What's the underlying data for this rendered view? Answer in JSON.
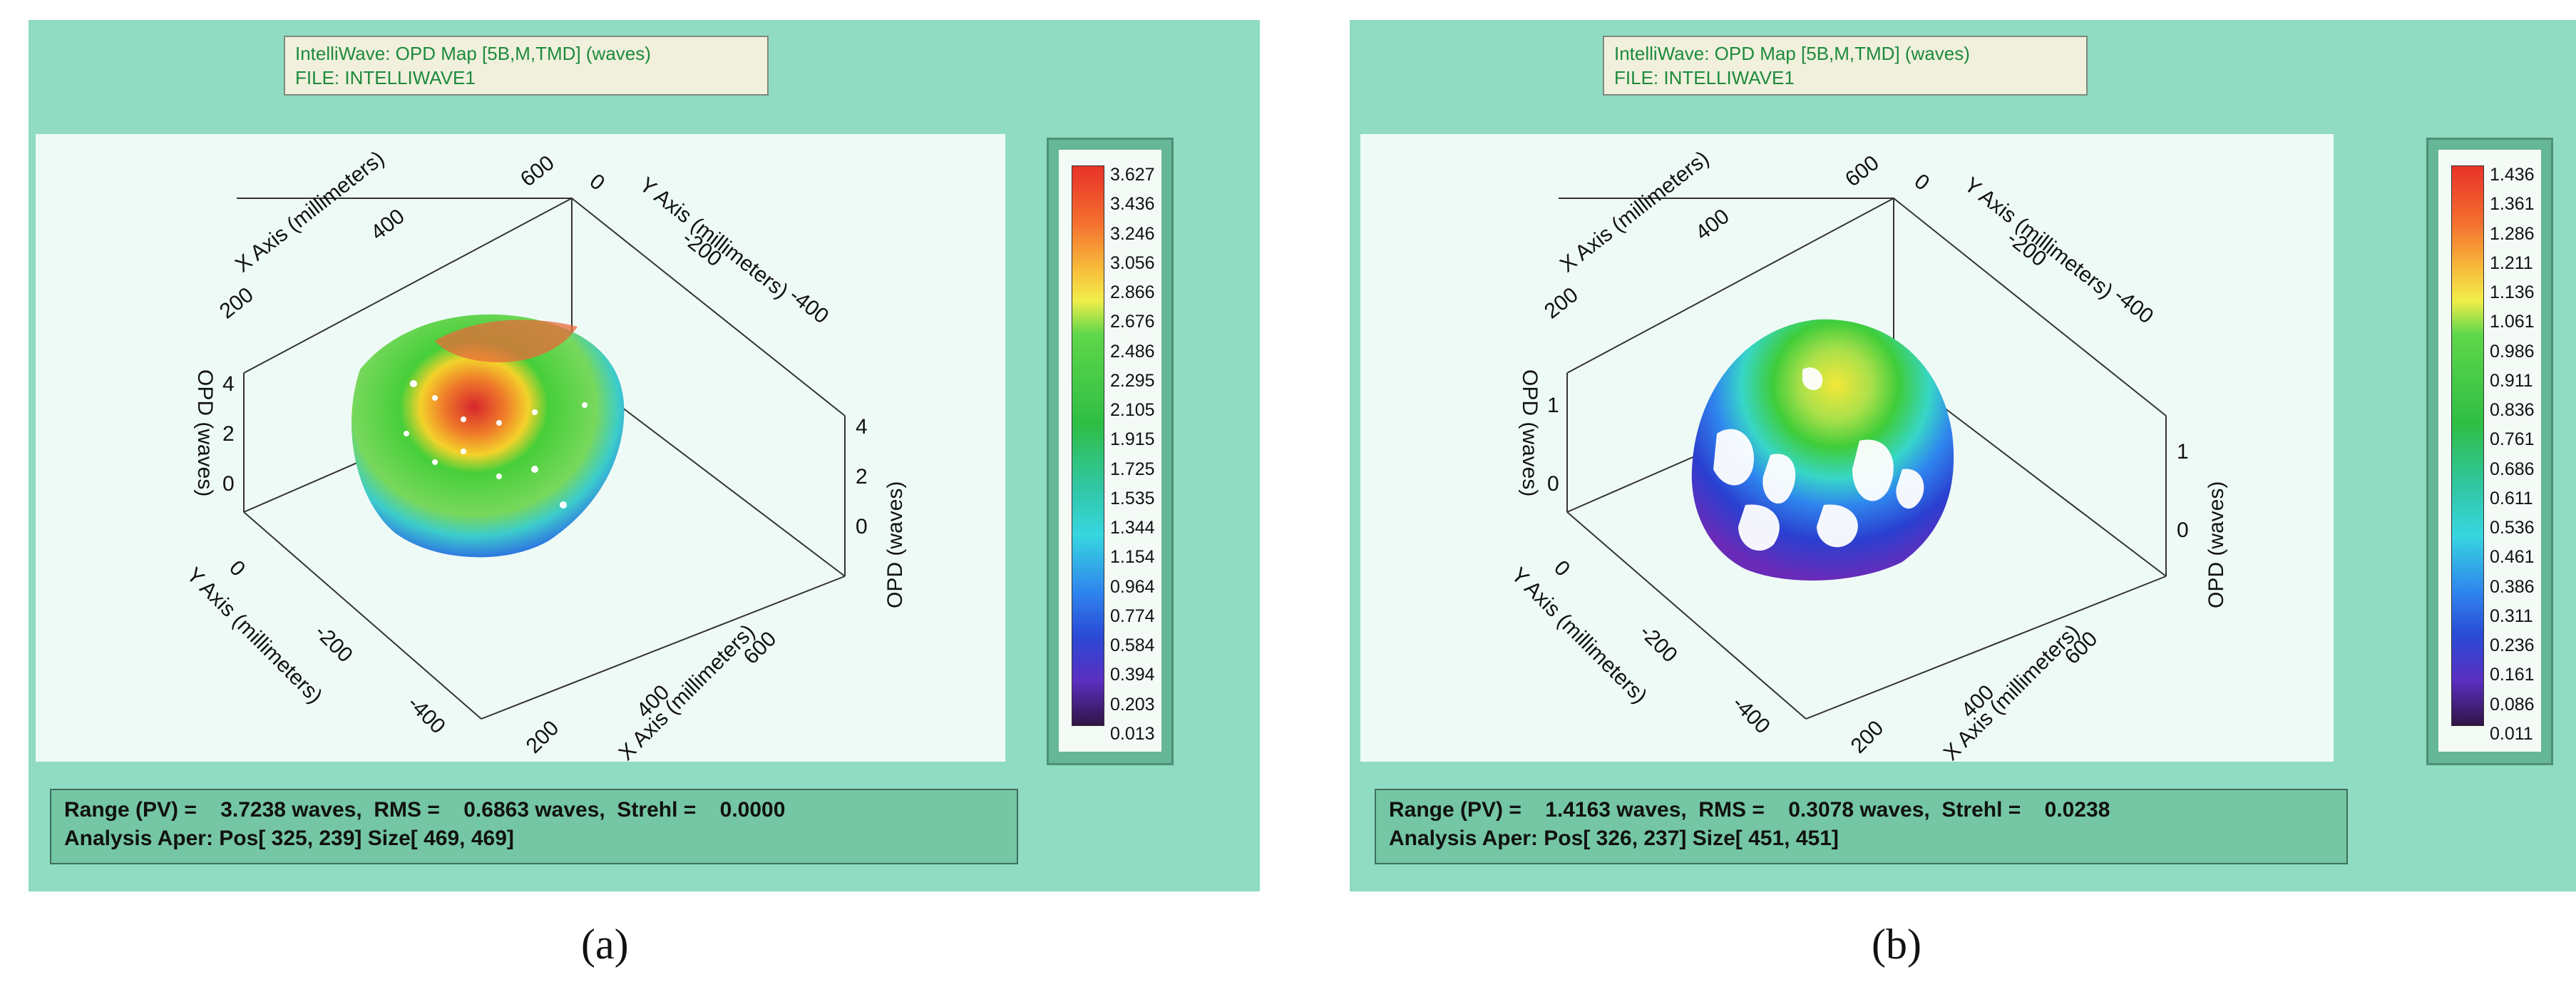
{
  "panels": [
    {
      "caption": "(a)",
      "title_line1": "IntelliWave: OPD Map [5B,M,TMD]  (waves)",
      "title_line2": "FILE: INTELLIWAVE1",
      "axes": {
        "x_axis_label": "X Axis (millimeters)",
        "y_axis_label": "Y Axis (millimeters)",
        "z_axis_label": "OPD (waves)",
        "x_ticks": [
          "200",
          "400",
          "600"
        ],
        "y_ticks": [
          "0",
          "-200",
          "-400"
        ],
        "z_ticks": [
          "0",
          "2",
          "4"
        ]
      },
      "colorbar": [
        "3.627",
        "3.436",
        "3.246",
        "3.056",
        "2.866",
        "2.676",
        "2.486",
        "2.295",
        "2.105",
        "1.915",
        "1.725",
        "1.535",
        "1.344",
        "1.154",
        "0.964",
        "0.774",
        "0.584",
        "0.394",
        "0.203",
        "0.013"
      ],
      "stats_line1": "Range (PV) =    3.7238 waves,  RMS =    0.6863 waves,  Strehl =    0.0000",
      "stats_line2": "Analysis Aper: Pos[ 325, 239] Size[ 469, 469]"
    },
    {
      "caption": "(b)",
      "title_line1": "IntelliWave: OPD Map [5B,M,TMD]  (waves)",
      "title_line2": "FILE: INTELLIWAVE1",
      "axes": {
        "x_axis_label": "X Axis (millimeters)",
        "y_axis_label": "Y Axis (millimeters)",
        "z_axis_label": "OPD (waves)",
        "x_ticks": [
          "200",
          "400",
          "600"
        ],
        "y_ticks": [
          "0",
          "-200",
          "-400"
        ],
        "z_ticks": [
          "0",
          "1"
        ]
      },
      "colorbar": [
        "1.436",
        "1.361",
        "1.286",
        "1.211",
        "1.136",
        "1.061",
        "0.986",
        "0.911",
        "0.836",
        "0.761",
        "0.686",
        "0.611",
        "0.536",
        "0.461",
        "0.386",
        "0.311",
        "0.236",
        "0.161",
        "0.086",
        "0.011"
      ],
      "stats_line1": "Range (PV) =    1.4163 waves,  RMS =    0.3078 waves,  Strehl =    0.0238",
      "stats_line2": "Analysis Aper: Pos[ 326, 237] Size[ 451, 451]"
    }
  ]
}
